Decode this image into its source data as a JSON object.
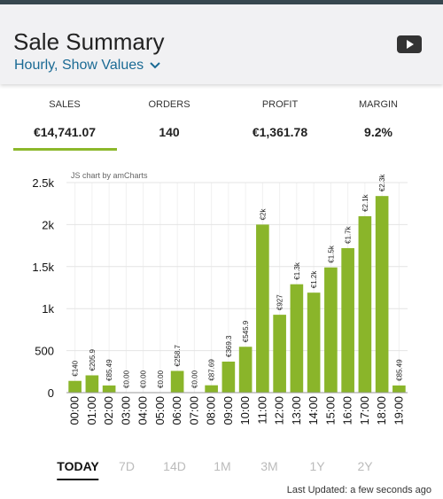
{
  "header": {
    "title": "Sale Summary",
    "subtitle": "Hourly, Show Values"
  },
  "stats": [
    {
      "label": "SALES",
      "value": "€14,741.07"
    },
    {
      "label": "ORDERS",
      "value": "140"
    },
    {
      "label": "PROFIT",
      "value": "€1,361.78"
    },
    {
      "label": "MARGIN",
      "value": "9.2%"
    }
  ],
  "chart_data": {
    "type": "bar",
    "credit": "JS chart by amCharts",
    "categories": [
      "00:00",
      "01:00",
      "02:00",
      "03:00",
      "04:00",
      "05:00",
      "06:00",
      "07:00",
      "08:00",
      "09:00",
      "10:00",
      "11:00",
      "12:00",
      "13:00",
      "14:00",
      "15:00",
      "16:00",
      "17:00",
      "18:00",
      "19:00"
    ],
    "values": [
      140,
      205.9,
      85.49,
      0,
      0,
      0,
      258.7,
      0,
      87.69,
      369.3,
      545.9,
      2000,
      927,
      1290,
      1190,
      1490,
      1720,
      2100,
      2340,
      85.49
    ],
    "value_labels": [
      "€140",
      "€205.9",
      "€85.49",
      "€0.00",
      "€0.00",
      "€0.00",
      "€258.7",
      "€0.00",
      "€87.69",
      "€369.3",
      "€545.9",
      "€2k",
      "€927",
      "€1.3k",
      "€1.2k",
      "€1.5k",
      "€1.7k",
      "€2.1k",
      "€2.3k",
      "€85.49"
    ],
    "color": "#8ab52a",
    "ylim": [
      0,
      2500
    ],
    "yticks": [
      0,
      500,
      {
        "value": 1000,
        "label": "1k"
      },
      {
        "value": 1500,
        "label": "1.5k"
      },
      {
        "value": 2000,
        "label": "2k"
      },
      {
        "value": 2500,
        "label": "2.5k"
      }
    ],
    "grid": true
  },
  "tabs": [
    "TODAY",
    "7D",
    "14D",
    "1M",
    "3M",
    "1Y",
    "2Y"
  ],
  "footer": "Last Updated: a few seconds ago"
}
